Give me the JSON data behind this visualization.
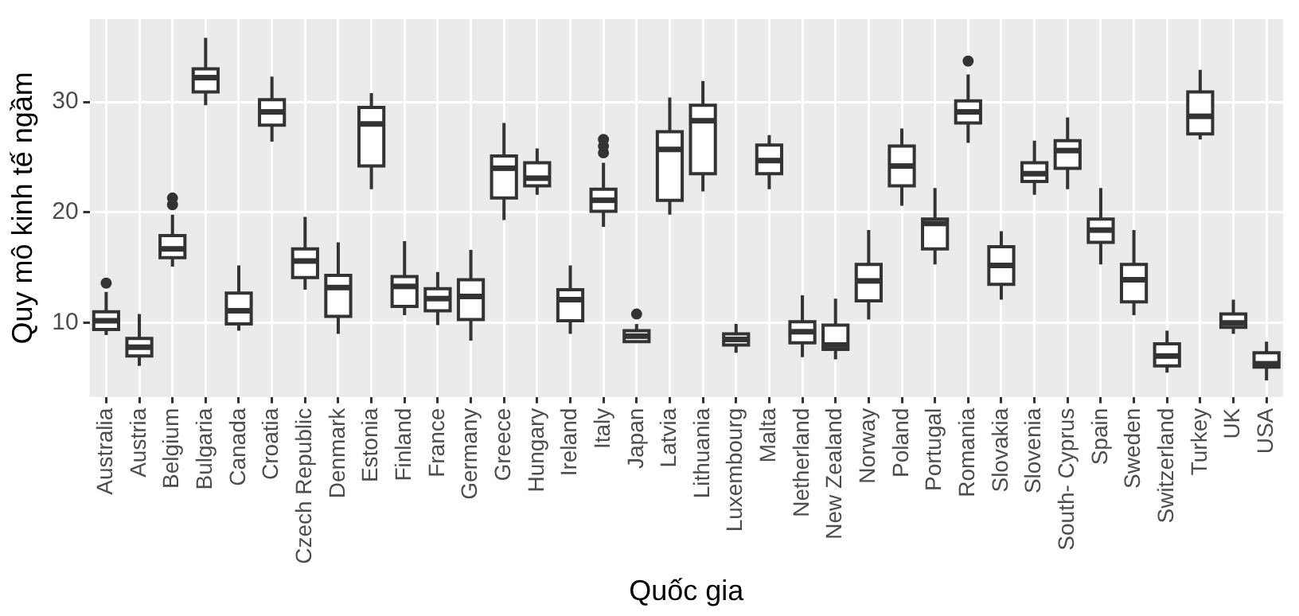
{
  "chart_data": {
    "type": "box",
    "xlabel": "Quốc gia",
    "ylabel": "Quy mô kinh tế ngầm",
    "color": "#ffffff",
    "grid": true,
    "legend": false,
    "categories": [
      "Australia",
      "Austria",
      "Belgium",
      "Bulgaria",
      "Canada",
      "Croatia",
      "Czech Republic",
      "Denmark",
      "Estonia",
      "Finland",
      "France",
      "Germany",
      "Greece",
      "Hungary",
      "Ireland",
      "Italy",
      "Japan",
      "Latvia",
      "Lithuania",
      "Luxembourg",
      "Malta",
      "Netherland",
      "New Zealand",
      "Norway",
      "Poland",
      "Portugal",
      "Romania",
      "Slovakia",
      "Slovenia",
      "South- Cyprus",
      "Spain",
      "Sweden",
      "Switzerland",
      "Turkey",
      "UK",
      "USA"
    ],
    "ylim": [
      3.3,
      37.5
    ],
    "yticks": [
      10,
      20,
      30
    ],
    "boxes": [
      {
        "low": 8.9,
        "q1": 9.4,
        "median": 10.2,
        "q3": 11.0,
        "high": 12.8,
        "outliers": [
          13.6
        ]
      },
      {
        "low": 6.1,
        "q1": 7.0,
        "median": 7.8,
        "q3": 8.6,
        "high": 10.8
      },
      {
        "low": 15.1,
        "q1": 15.9,
        "median": 16.7,
        "q3": 17.9,
        "high": 19.8,
        "outliers": [
          20.7,
          21.3
        ]
      },
      {
        "low": 29.7,
        "q1": 30.9,
        "median": 32.2,
        "q3": 33.0,
        "high": 35.8
      },
      {
        "low": 9.3,
        "q1": 9.9,
        "median": 11.1,
        "q3": 12.7,
        "high": 15.2
      },
      {
        "low": 26.4,
        "q1": 27.9,
        "median": 29.1,
        "q3": 30.2,
        "high": 32.3
      },
      {
        "low": 13.0,
        "q1": 14.1,
        "median": 15.6,
        "q3": 16.7,
        "high": 19.6
      },
      {
        "low": 9.0,
        "q1": 10.6,
        "median": 13.2,
        "q3": 14.3,
        "high": 17.3
      },
      {
        "low": 22.1,
        "q1": 24.2,
        "median": 28.0,
        "q3": 29.5,
        "high": 30.8
      },
      {
        "low": 10.7,
        "q1": 11.5,
        "median": 13.3,
        "q3": 14.2,
        "high": 17.4
      },
      {
        "low": 9.8,
        "q1": 11.1,
        "median": 12.2,
        "q3": 13.1,
        "high": 14.6
      },
      {
        "low": 8.4,
        "q1": 10.3,
        "median": 12.4,
        "q3": 13.9,
        "high": 16.6
      },
      {
        "low": 19.3,
        "q1": 21.3,
        "median": 24.0,
        "q3": 25.1,
        "high": 28.1
      },
      {
        "low": 21.6,
        "q1": 22.4,
        "median": 23.1,
        "q3": 24.5,
        "high": 25.8
      },
      {
        "low": 9.0,
        "q1": 10.2,
        "median": 12.1,
        "q3": 13.0,
        "high": 15.2
      },
      {
        "low": 18.7,
        "q1": 20.1,
        "median": 21.1,
        "q3": 22.1,
        "high": 24.5,
        "outliers": [
          25.4,
          26.0,
          26.6
        ]
      },
      {
        "low": 8.3,
        "q1": 8.3,
        "median": 8.8,
        "q3": 9.3,
        "high": 9.9,
        "outliers": [
          10.8
        ]
      },
      {
        "low": 19.8,
        "q1": 21.1,
        "median": 25.7,
        "q3": 27.3,
        "high": 30.4
      },
      {
        "low": 21.9,
        "q1": 23.5,
        "median": 28.3,
        "q3": 29.7,
        "high": 31.9
      },
      {
        "low": 7.3,
        "q1": 8.0,
        "median": 8.5,
        "q3": 9.0,
        "high": 9.9
      },
      {
        "low": 22.1,
        "q1": 23.5,
        "median": 24.7,
        "q3": 26.1,
        "high": 27.0
      },
      {
        "low": 6.9,
        "q1": 8.2,
        "median": 9.2,
        "q3": 10.1,
        "high": 12.5
      },
      {
        "low": 6.7,
        "q1": 7.6,
        "median": 8.0,
        "q3": 9.8,
        "high": 12.2
      },
      {
        "low": 10.3,
        "q1": 12.0,
        "median": 13.8,
        "q3": 15.3,
        "high": 18.4
      },
      {
        "low": 20.6,
        "q1": 22.4,
        "median": 24.2,
        "q3": 26.0,
        "high": 27.6
      },
      {
        "low": 15.3,
        "q1": 16.7,
        "median": 19.0,
        "q3": 19.4,
        "high": 22.2
      },
      {
        "low": 26.3,
        "q1": 28.1,
        "median": 29.1,
        "q3": 30.1,
        "high": 32.5,
        "outliers": [
          33.7
        ]
      },
      {
        "low": 12.1,
        "q1": 13.5,
        "median": 15.2,
        "q3": 16.9,
        "high": 18.3
      },
      {
        "low": 21.6,
        "q1": 22.8,
        "median": 23.5,
        "q3": 24.5,
        "high": 26.5
      },
      {
        "low": 22.1,
        "q1": 24.0,
        "median": 25.6,
        "q3": 26.5,
        "high": 28.6
      },
      {
        "low": 15.3,
        "q1": 17.3,
        "median": 18.4,
        "q3": 19.4,
        "high": 22.2
      },
      {
        "low": 10.7,
        "q1": 11.9,
        "median": 13.9,
        "q3": 15.3,
        "high": 18.4
      },
      {
        "low": 5.5,
        "q1": 6.1,
        "median": 7.0,
        "q3": 8.1,
        "high": 9.3
      },
      {
        "low": 26.6,
        "q1": 27.1,
        "median": 28.7,
        "q3": 30.9,
        "high": 32.9
      },
      {
        "low": 9.0,
        "q1": 9.6,
        "median": 10.0,
        "q3": 10.8,
        "high": 12.1
      },
      {
        "low": 4.8,
        "q1": 6.0,
        "median": 6.3,
        "q3": 7.3,
        "high": 8.3
      }
    ]
  }
}
